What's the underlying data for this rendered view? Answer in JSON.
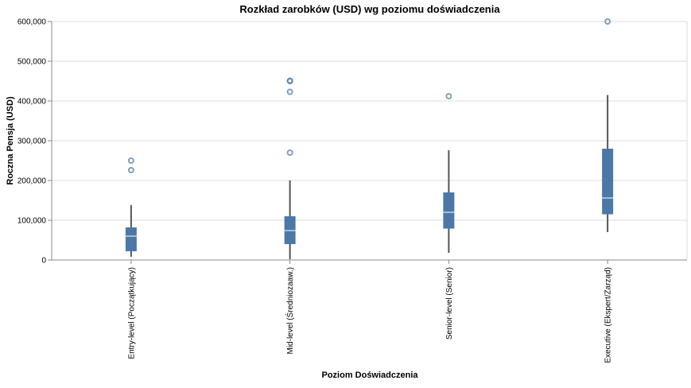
{
  "chart_data": {
    "type": "boxplot",
    "title": "Rozkład zarobków (USD) wg poziomu doświadczenia",
    "xlabel": "Poziom Doświadczenia",
    "ylabel": "Roczna Pensja (USD)",
    "ylim": [
      0,
      600000
    ],
    "yticks": [
      0,
      100000,
      200000,
      300000,
      400000,
      500000,
      600000
    ],
    "ytick_labels": [
      "0",
      "100,000",
      "200,000",
      "300,000",
      "400,000",
      "500,000",
      "600,000"
    ],
    "grid": true,
    "color": "#4c78a8",
    "median_color": "#ffffff",
    "whisker_color": "#555555",
    "categories": [
      "Entry-level (Początkujący)",
      "Mid-level (Średniozaaw.)",
      "Senior-level (Senior)",
      "Executive (Ekspert/Zarząd)"
    ],
    "boxes": [
      {
        "category": "Entry-level (Początkujący)",
        "min": 8000,
        "q1": 22000,
        "median": 60000,
        "q3": 82000,
        "max": 138000,
        "outliers": [
          226000,
          250000
        ]
      },
      {
        "category": "Mid-level (Średniozaaw.)",
        "min": 2000,
        "q1": 40000,
        "median": 74000,
        "q3": 110000,
        "max": 200000,
        "outliers": [
          270000,
          423000,
          450000,
          451000
        ]
      },
      {
        "category": "Senior-level (Senior)",
        "min": 18000,
        "q1": 79000,
        "median": 120000,
        "q3": 170000,
        "max": 276000,
        "outliers": [
          412000
        ]
      },
      {
        "category": "Executive (Ekspert/Zarząd)",
        "min": 70000,
        "q1": 115000,
        "median": 156000,
        "q3": 280000,
        "max": 415000,
        "outliers": [
          600000
        ]
      }
    ]
  }
}
